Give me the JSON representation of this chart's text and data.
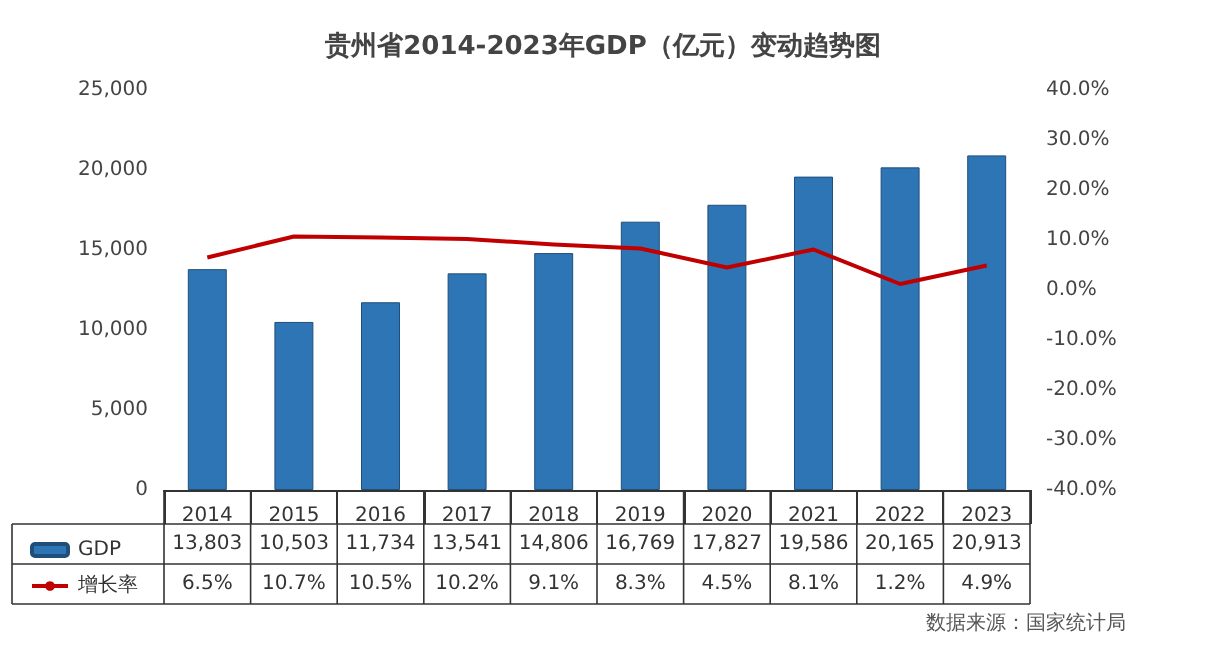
{
  "chart_data": {
    "type": "bar",
    "title": "贵州省2014-2023年GDP（亿元）变动趋势图",
    "categories": [
      "2014",
      "2015",
      "2016",
      "2017",
      "2018",
      "2019",
      "2020",
      "2021",
      "2022",
      "2023"
    ],
    "series": [
      {
        "name": "GDP",
        "color": "#2e75b6",
        "values": [
          13803,
          10503,
          11734,
          13541,
          14806,
          16769,
          17827,
          19586,
          20165,
          20913
        ],
        "value_labels": [
          "13,803",
          "10,503",
          "11,734",
          "13,541",
          "14,806",
          "16,769",
          "17,827",
          "19,586",
          "20,165",
          "20,913"
        ]
      },
      {
        "name": "增长率",
        "type": "line",
        "axis": "y2",
        "color": "#c00000",
        "values": [
          6.5,
          10.7,
          10.5,
          10.2,
          9.1,
          8.3,
          4.5,
          8.1,
          1.2,
          4.9
        ],
        "value_labels": [
          "6.5%",
          "10.7%",
          "10.5%",
          "10.2%",
          "9.1%",
          "8.3%",
          "4.5%",
          "8.1%",
          "1.2%",
          "4.9%"
        ]
      }
    ],
    "ylim": [
      0,
      25000
    ],
    "yticks": [
      0,
      {
        "value": 5000,
        "label": "5,000"
      },
      {
        "value": 10000,
        "label": "10,000"
      },
      {
        "value": 15000,
        "label": "15,000"
      },
      {
        "value": 20000,
        "label": "20,000"
      },
      {
        "value": 25000,
        "label": "25,000"
      }
    ],
    "y2lim": [
      -40,
      40
    ],
    "y2ticks": [
      {
        "value": -40,
        "label": "-40.0%"
      },
      {
        "value": -30,
        "label": "-30.0%"
      },
      {
        "value": -20,
        "label": "-20.0%"
      },
      {
        "value": -10,
        "label": "-10.0%"
      },
      {
        "value": 0,
        "label": "0.0%"
      },
      {
        "value": 10,
        "label": "10.0%"
      },
      {
        "value": 20,
        "label": "20.0%"
      },
      {
        "value": 30,
        "label": "30.0%"
      },
      {
        "value": 40,
        "label": "40.0%"
      }
    ],
    "grid": false,
    "legend": "bottom",
    "marker": "none",
    "line_style": "solid",
    "annotations": [
      "数据来源：国家统计局"
    ]
  }
}
